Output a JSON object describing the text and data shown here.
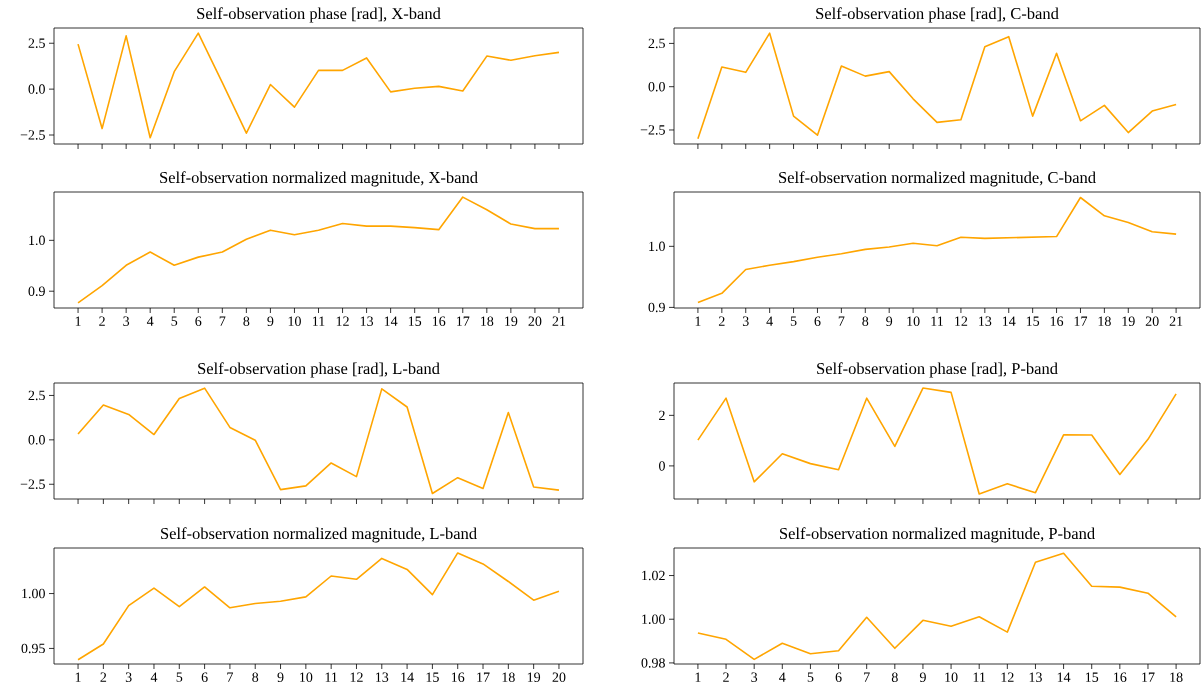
{
  "chart_data": [
    {
      "type": "line",
      "title": "Self-observation phase [rad], X-band",
      "categories": [
        "1",
        "2",
        "3",
        "4",
        "5",
        "6",
        "7",
        "8",
        "9",
        "10",
        "11",
        "12",
        "13",
        "14",
        "15",
        "16",
        "17",
        "18",
        "19",
        "20",
        "21"
      ],
      "tick_labels": "y",
      "color": "#ffa500",
      "ylim": [
        -2.99,
        3.33
      ],
      "yticks": [
        {
          "value": -2.5,
          "label": "−2.5"
        },
        {
          "value": 0,
          "label": "0.0"
        },
        {
          "value": 2.5,
          "label": "2.5"
        }
      ],
      "values": [
        2.45,
        -2.15,
        2.9,
        -2.65,
        0.95,
        3.05,
        0.35,
        -2.4,
        0.25,
        -0.98,
        1.02,
        1.02,
        1.7,
        -0.15,
        0.05,
        0.15,
        -0.1,
        1.8,
        1.57,
        1.82,
        2.0
      ]
    },
    {
      "type": "line",
      "title": "Self-observation phase [rad], C-band",
      "categories": [
        "1",
        "2",
        "3",
        "4",
        "5",
        "6",
        "7",
        "8",
        "9",
        "10",
        "11",
        "12",
        "13",
        "14",
        "15",
        "16",
        "17",
        "18",
        "19",
        "20",
        "21"
      ],
      "tick_labels": "y",
      "color": "#ffa500",
      "ylim": [
        -3.31,
        3.39
      ],
      "yticks": [
        {
          "value": -2.5,
          "label": "−2.5"
        },
        {
          "value": 0,
          "label": "0.0"
        },
        {
          "value": 2.5,
          "label": "2.5"
        }
      ],
      "values": [
        -3.0,
        1.14,
        0.83,
        3.09,
        -1.7,
        -2.8,
        1.19,
        0.61,
        0.87,
        -0.7,
        -2.06,
        -1.91,
        2.31,
        2.89,
        -1.7,
        1.93,
        -1.97,
        -1.08,
        -2.65,
        -1.41,
        -1.03
      ]
    },
    {
      "type": "line",
      "title": "Self-observation normalized magnitude, X-band",
      "categories": [
        "1",
        "2",
        "3",
        "4",
        "5",
        "6",
        "7",
        "8",
        "9",
        "10",
        "11",
        "12",
        "13",
        "14",
        "15",
        "16",
        "17",
        "18",
        "19",
        "20",
        "21"
      ],
      "color": "#ffa500",
      "ylim": [
        0.867,
        1.095
      ],
      "yticks": [
        {
          "value": 0.9,
          "label": "0.9"
        },
        {
          "value": 1.0,
          "label": "1.0"
        }
      ],
      "values": [
        0.877,
        0.911,
        0.951,
        0.977,
        0.951,
        0.967,
        0.977,
        1.002,
        1.02,
        1.011,
        1.02,
        1.033,
        1.028,
        1.028,
        1.025,
        1.021,
        1.085,
        1.06,
        1.032,
        1.023,
        1.023
      ]
    },
    {
      "type": "line",
      "title": "Self-observation normalized magnitude, C-band",
      "categories": [
        "1",
        "2",
        "3",
        "4",
        "5",
        "6",
        "7",
        "8",
        "9",
        "10",
        "11",
        "12",
        "13",
        "14",
        "15",
        "16",
        "17",
        "18",
        "19",
        "20",
        "21"
      ],
      "color": "#ffa500",
      "ylim": [
        0.899,
        1.089
      ],
      "yticks": [
        {
          "value": 0.9,
          "label": "0.9"
        },
        {
          "value": 1.0,
          "label": "1.0"
        }
      ],
      "values": [
        0.908,
        0.923,
        0.962,
        0.969,
        0.975,
        0.982,
        0.988,
        0.995,
        0.999,
        1.005,
        1.001,
        1.015,
        1.013,
        1.014,
        1.015,
        1.016,
        1.08,
        1.05,
        1.039,
        1.024,
        1.02
      ]
    },
    {
      "type": "line",
      "title": "Self-observation phase [rad], L-band",
      "categories": [
        "1",
        "2",
        "3",
        "4",
        "5",
        "6",
        "7",
        "8",
        "9",
        "10",
        "11",
        "12",
        "13",
        "14",
        "15",
        "16",
        "17",
        "18",
        "19",
        "20"
      ],
      "tick_labels": "y",
      "color": "#ffa500",
      "ylim": [
        -3.33,
        3.2
      ],
      "yticks": [
        {
          "value": -2.5,
          "label": "−2.5"
        },
        {
          "value": 0,
          "label": "0.0"
        },
        {
          "value": 2.5,
          "label": "2.5"
        }
      ],
      "values": [
        0.33,
        1.96,
        1.43,
        0.3,
        2.33,
        2.91,
        0.7,
        -0.02,
        -2.8,
        -2.59,
        -1.3,
        -2.07,
        2.87,
        1.85,
        -3.02,
        -2.13,
        -2.74,
        1.54,
        -2.65,
        -2.83
      ]
    },
    {
      "type": "line",
      "title": "Self-observation phase [rad], P-band",
      "categories": [
        "1",
        "2",
        "3",
        "4",
        "5",
        "6",
        "7",
        "8",
        "9",
        "10",
        "11",
        "12",
        "13",
        "14",
        "15",
        "16",
        "17",
        "18"
      ],
      "tick_labels": "y",
      "color": "#ffa500",
      "ylim": [
        -1.31,
        3.28
      ],
      "yticks": [
        0,
        2
      ],
      "values": [
        1.02,
        2.68,
        -0.63,
        0.48,
        0.09,
        -0.15,
        2.68,
        0.77,
        3.08,
        2.91,
        -1.11,
        -0.71,
        -1.06,
        1.23,
        1.22,
        -0.34,
        1.05,
        2.85
      ]
    },
    {
      "type": "line",
      "title": "Self-observation normalized magnitude, L-band",
      "categories": [
        "1",
        "2",
        "3",
        "4",
        "5",
        "6",
        "7",
        "8",
        "9",
        "10",
        "11",
        "12",
        "13",
        "14",
        "15",
        "16",
        "17",
        "18",
        "19",
        "20"
      ],
      "color": "#ffa500",
      "ylim": [
        0.9358,
        1.0415
      ],
      "yticks": [
        {
          "value": 0.95,
          "label": "0.95"
        },
        {
          "value": 1.0,
          "label": "1.00"
        }
      ],
      "values": [
        0.9397,
        0.954,
        0.989,
        1.005,
        0.988,
        1.006,
        0.987,
        0.991,
        0.993,
        0.997,
        1.016,
        1.013,
        1.032,
        1.022,
        0.999,
        1.037,
        1.027,
        1.011,
        0.994,
        1.002
      ]
    },
    {
      "type": "line",
      "title": "Self-observation normalized magnitude, P-band",
      "categories": [
        "1",
        "2",
        "3",
        "4",
        "5",
        "6",
        "7",
        "8",
        "9",
        "10",
        "11",
        "12",
        "13",
        "14",
        "15",
        "16",
        "17",
        "18"
      ],
      "color": "#ffa500",
      "ylim": [
        0.9795,
        1.0326
      ],
      "yticks": [
        {
          "value": 0.98,
          "label": "0.98"
        },
        {
          "value": 1.0,
          "label": "1.00"
        },
        {
          "value": 1.02,
          "label": "1.02"
        }
      ],
      "values": [
        0.9937,
        0.9908,
        0.9816,
        0.989,
        0.9842,
        0.9856,
        1.0009,
        0.9867,
        0.9995,
        0.9968,
        1.0011,
        0.9941,
        1.0261,
        1.0302,
        1.0151,
        1.0147,
        1.0119,
        1.0011
      ]
    }
  ]
}
